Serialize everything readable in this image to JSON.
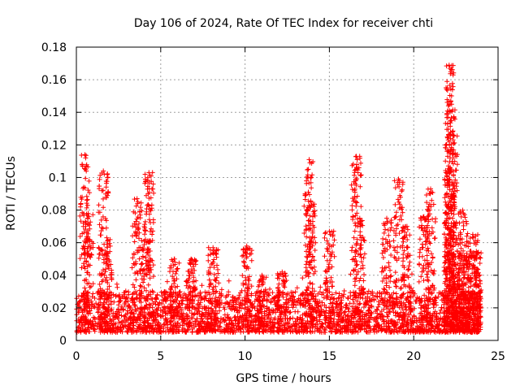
{
  "chart_data": {
    "type": "scatter",
    "title": "Day 106 of 2024, Rate Of TEC Index for receiver chti",
    "xlabel": "GPS time / hours",
    "ylabel": "ROTI / TECUs",
    "xlim": [
      0,
      25
    ],
    "ylim": [
      0,
      0.18
    ],
    "xticks": [
      0,
      5,
      10,
      15,
      20,
      25
    ],
    "xtick_labels": [
      "0",
      "5",
      "10",
      "15",
      "20",
      "25"
    ],
    "yticks": [
      0,
      0.02,
      0.04,
      0.06,
      0.08,
      0.1,
      0.12,
      0.14,
      0.16,
      0.18
    ],
    "ytick_labels": [
      "0",
      "0.02",
      "0.04",
      "0.06",
      "0.08",
      "0.1",
      "0.12",
      "0.14",
      "0.16",
      "0.18"
    ],
    "grid": true,
    "marker": "+",
    "series_color": "#ff0000",
    "data_span_hours": [
      0,
      24
    ],
    "background_band": {
      "low": 0.005,
      "high": 0.03,
      "description": "dense cloud of points between ~0.005 and ~0.03 TECU/s across 0–24 h"
    },
    "peaks": [
      {
        "x": 0.5,
        "y": 0.114
      },
      {
        "x": 0.7,
        "y": 0.078
      },
      {
        "x": 1.6,
        "y": 0.104
      },
      {
        "x": 1.8,
        "y": 0.063
      },
      {
        "x": 3.6,
        "y": 0.087
      },
      {
        "x": 4.3,
        "y": 0.103
      },
      {
        "x": 4.1,
        "y": 0.062
      },
      {
        "x": 5.8,
        "y": 0.05
      },
      {
        "x": 6.8,
        "y": 0.05
      },
      {
        "x": 8.1,
        "y": 0.057
      },
      {
        "x": 10.1,
        "y": 0.058
      },
      {
        "x": 11.0,
        "y": 0.04
      },
      {
        "x": 12.2,
        "y": 0.042
      },
      {
        "x": 13.8,
        "y": 0.111
      },
      {
        "x": 13.9,
        "y": 0.085
      },
      {
        "x": 15.0,
        "y": 0.067
      },
      {
        "x": 16.6,
        "y": 0.113
      },
      {
        "x": 16.8,
        "y": 0.075
      },
      {
        "x": 18.4,
        "y": 0.075
      },
      {
        "x": 19.1,
        "y": 0.099
      },
      {
        "x": 19.6,
        "y": 0.07
      },
      {
        "x": 20.6,
        "y": 0.076
      },
      {
        "x": 21.0,
        "y": 0.093
      },
      {
        "x": 22.1,
        "y": 0.169
      },
      {
        "x": 22.2,
        "y": 0.147
      },
      {
        "x": 22.3,
        "y": 0.128
      },
      {
        "x": 22.1,
        "y": 0.105
      },
      {
        "x": 22.9,
        "y": 0.08
      },
      {
        "x": 23.5,
        "y": 0.065
      }
    ]
  }
}
